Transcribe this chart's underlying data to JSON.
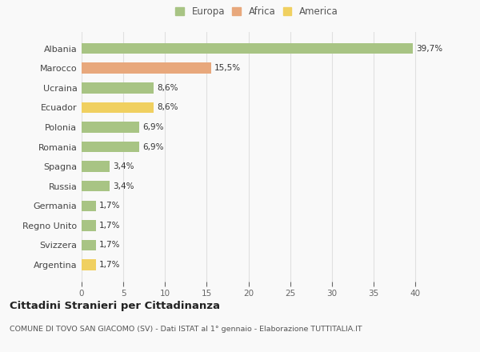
{
  "countries": [
    "Albania",
    "Marocco",
    "Ucraina",
    "Ecuador",
    "Polonia",
    "Romania",
    "Spagna",
    "Russia",
    "Germania",
    "Regno Unito",
    "Svizzera",
    "Argentina"
  ],
  "values": [
    39.7,
    15.5,
    8.6,
    8.6,
    6.9,
    6.9,
    3.4,
    3.4,
    1.7,
    1.7,
    1.7,
    1.7
  ],
  "labels": [
    "39,7%",
    "15,5%",
    "8,6%",
    "8,6%",
    "6,9%",
    "6,9%",
    "3,4%",
    "3,4%",
    "1,7%",
    "1,7%",
    "1,7%",
    "1,7%"
  ],
  "colors": [
    "#a8c484",
    "#e8a87c",
    "#a8c484",
    "#f0d060",
    "#a8c484",
    "#a8c484",
    "#a8c484",
    "#a8c484",
    "#a8c484",
    "#a8c484",
    "#a8c484",
    "#f0d060"
  ],
  "legend_labels": [
    "Europa",
    "Africa",
    "America"
  ],
  "legend_colors": [
    "#a8c484",
    "#e8a87c",
    "#f0d060"
  ],
  "xlim": [
    0,
    42
  ],
  "xticks": [
    0,
    5,
    10,
    15,
    20,
    25,
    30,
    35,
    40
  ],
  "title": "Cittadini Stranieri per Cittadinanza",
  "subtitle": "COMUNE DI TOVO SAN GIACOMO (SV) - Dati ISTAT al 1° gennaio - Elaborazione TUTTITALIA.IT",
  "background_color": "#f9f9f9",
  "grid_color": "#e0e0e0",
  "bar_height": 0.55,
  "label_fontsize": 7.5,
  "ytick_fontsize": 8,
  "xtick_fontsize": 7.5,
  "title_fontsize": 9.5,
  "subtitle_fontsize": 6.8
}
